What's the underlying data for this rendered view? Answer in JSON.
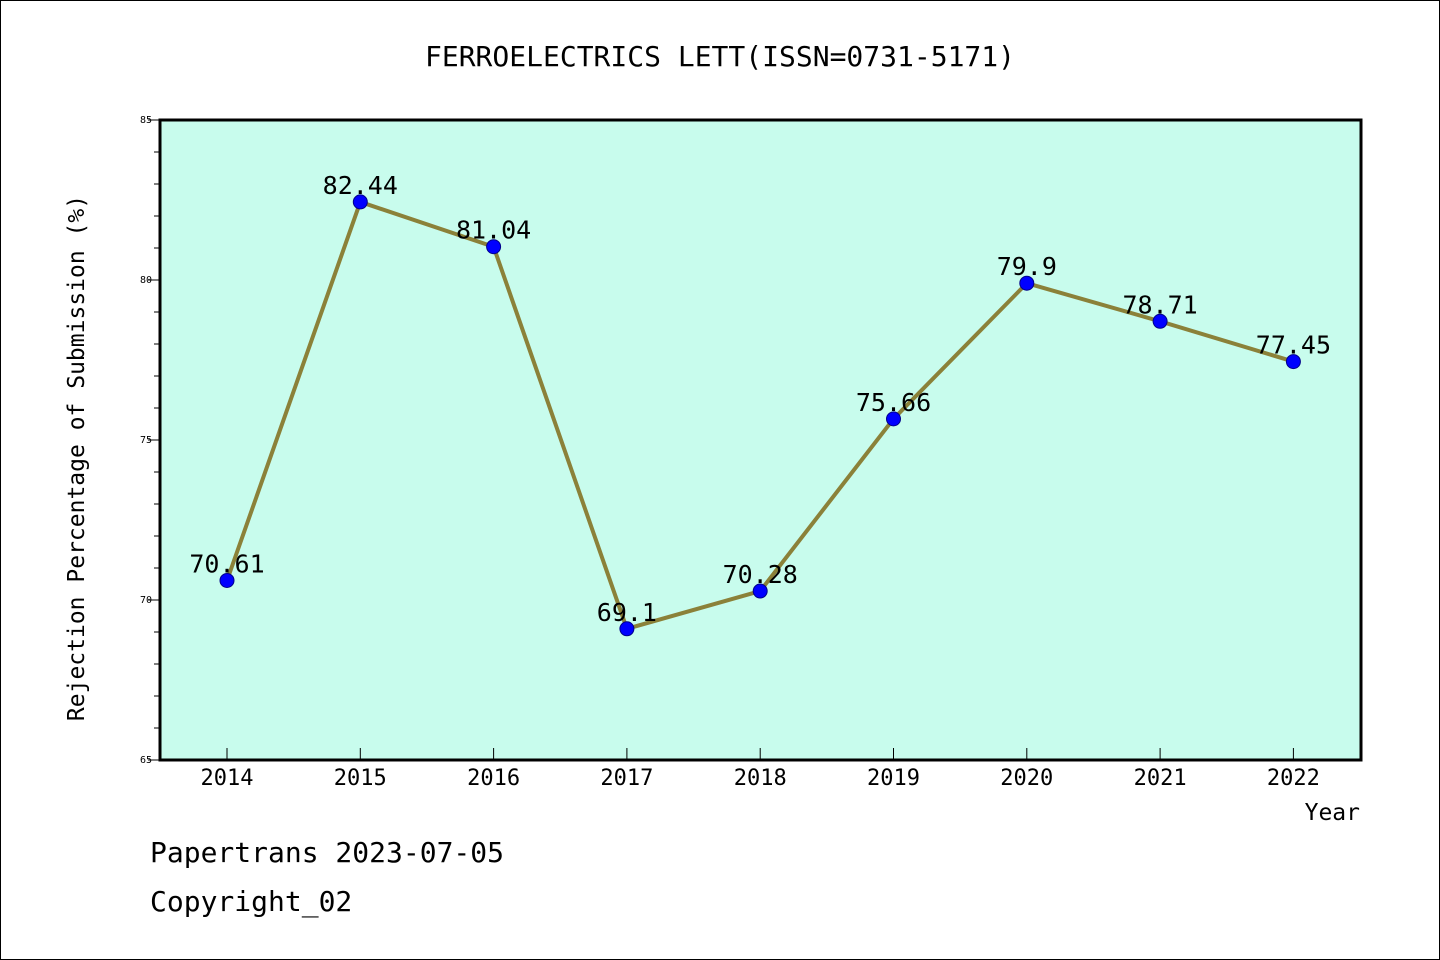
{
  "chart_data": {
    "type": "line",
    "title": "FERROELECTRICS LETT(ISSN=0731-5171)",
    "xlabel": "Year",
    "ylabel": "Rejection Percentage of Submission (%)",
    "categories": [
      "2014",
      "2015",
      "2016",
      "2017",
      "2018",
      "2019",
      "2020",
      "2021",
      "2022"
    ],
    "series": [
      {
        "values": [
          70.61,
          82.44,
          81.04,
          69.1,
          70.28,
          75.66,
          79.9,
          78.71,
          77.45
        ],
        "labels": [
          "70.61",
          "82.44",
          "81.04",
          "69.1",
          "70.28",
          "75.66",
          "79.9",
          "78.71",
          "77.45"
        ]
      }
    ],
    "ylim": [
      65,
      85
    ],
    "yticks": [
      "65",
      "70",
      "75",
      "80",
      "85"
    ],
    "grid": false,
    "colors": {
      "plot_background": "#c8fced",
      "line": "#8b8139",
      "marker": "#0000ff"
    }
  },
  "footer": {
    "line1": "Papertrans 2023-07-05",
    "line2": "Copyright_02"
  }
}
